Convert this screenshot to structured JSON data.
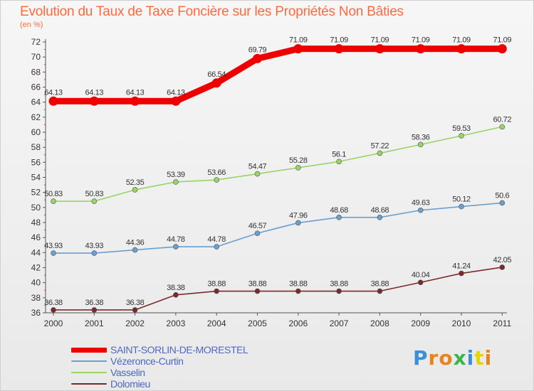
{
  "header": {
    "title": "Evolution du Taux de Taxe Foncière sur les Propriétés Non Bâties",
    "unit": "(en %)"
  },
  "logo": {
    "text": "Proxiti"
  },
  "chart_data": {
    "type": "line",
    "x": [
      "2000",
      "2001",
      "2002",
      "2003",
      "2004",
      "2005",
      "2006",
      "2007",
      "2008",
      "2009",
      "2010",
      "2011"
    ],
    "ylim": [
      36,
      72
    ],
    "yticks": [
      36,
      38,
      40,
      42,
      44,
      46,
      48,
      50,
      52,
      54,
      56,
      58,
      60,
      62,
      64,
      66,
      68,
      70,
      72
    ],
    "grid": false,
    "legend_position": "bottom-left",
    "series": [
      {
        "name": "SAINT-SORLIN-DE-MORESTEL",
        "color": "#ee0000",
        "values": [
          64.13,
          64.13,
          64.13,
          64.13,
          66.54,
          69.79,
          71.09,
          71.09,
          71.09,
          71.09,
          71.09,
          71.09
        ],
        "labels": [
          "64.13",
          "64.13",
          "64.13",
          "64.13",
          "66.54",
          "69.79",
          "71.09",
          "71.09",
          "71.09",
          "71.09",
          "71.09",
          "71.09"
        ]
      },
      {
        "name": "Vézeronce-Curtin",
        "color": "#6a9fcf",
        "values": [
          43.93,
          43.93,
          44.36,
          44.78,
          44.78,
          46.57,
          47.96,
          48.68,
          48.68,
          49.63,
          50.12,
          50.6
        ],
        "labels": [
          "43.93",
          "43.93",
          "44.36",
          "44.78",
          "44.78",
          "46.57",
          "47.96",
          "48.68",
          "48.68",
          "49.63",
          "50.12",
          "50.6"
        ]
      },
      {
        "name": "Vasselin",
        "color": "#99d466",
        "values": [
          50.83,
          50.83,
          52.35,
          53.39,
          53.66,
          54.47,
          55.28,
          56.1,
          57.22,
          58.36,
          59.53,
          60.72
        ],
        "labels": [
          "50.83",
          "50.83",
          "52.35",
          "53.39",
          "53.66",
          "54.47",
          "55.28",
          "56.1",
          "57.22",
          "58.36",
          "59.53",
          "60.72"
        ]
      },
      {
        "name": "Dolomieu",
        "color": "#7a2a2a",
        "values": [
          36.38,
          36.38,
          36.38,
          38.38,
          38.88,
          38.88,
          38.88,
          38.88,
          38.88,
          40.04,
          41.24,
          42.05
        ],
        "labels": [
          "36.38",
          "36.38",
          "36.38",
          "38.38",
          "38.88",
          "38.88",
          "38.88",
          "38.88",
          "38.88",
          "40.04",
          "41.24",
          "42.05"
        ]
      }
    ]
  }
}
